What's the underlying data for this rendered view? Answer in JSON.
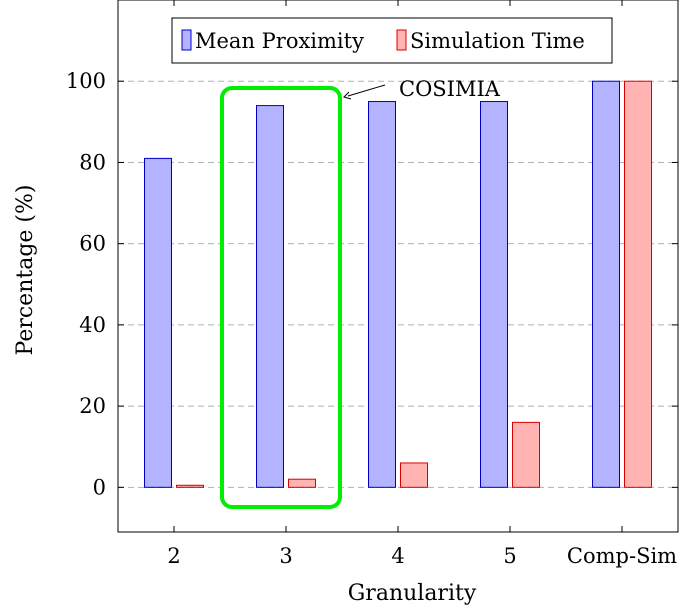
{
  "chart_data": {
    "type": "bar",
    "title": "",
    "xlabel": "Granularity",
    "ylabel": "Percentage (%)",
    "categories": [
      "2",
      "3",
      "4",
      "5",
      "Comp-Sim"
    ],
    "series": [
      {
        "name": "Mean Proximity",
        "values": [
          81,
          94,
          95,
          95,
          100
        ],
        "fill": "#b3b3ff",
        "stroke": "#0000cc"
      },
      {
        "name": "Simulation Time",
        "values": [
          0.5,
          2,
          6,
          16,
          100
        ],
        "fill": "#ffb3b3",
        "stroke": "#dd0000"
      }
    ],
    "ylim": [
      -11,
      120
    ],
    "yticks": [
      0,
      20,
      40,
      60,
      80,
      100
    ],
    "grid": true,
    "legend_position": "top-center",
    "annotation": {
      "text": "COSIMIA",
      "target_category": "3",
      "highlight_color": "#00ee00"
    }
  }
}
